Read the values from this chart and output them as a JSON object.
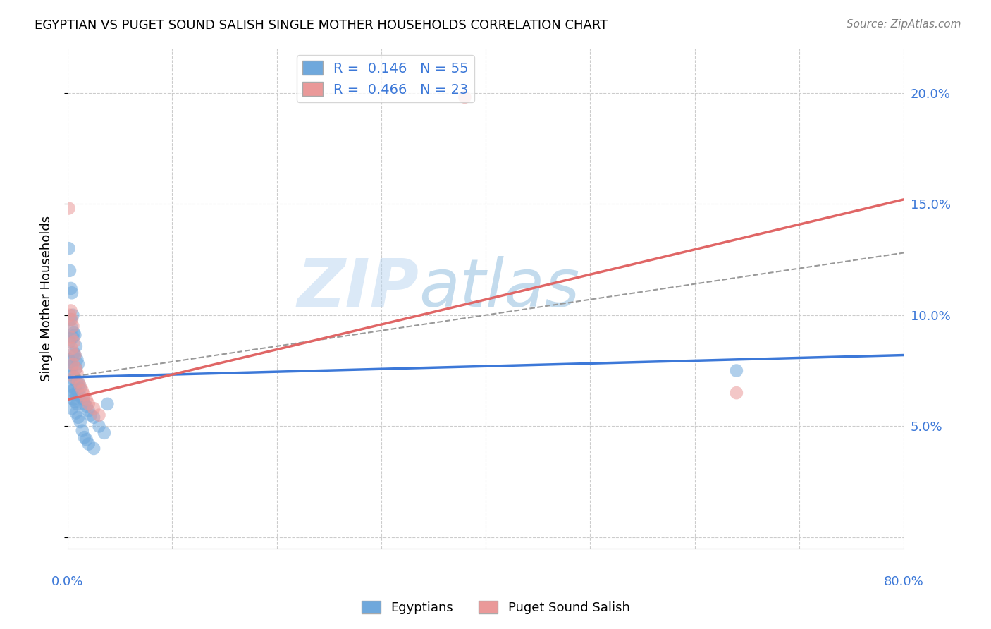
{
  "title": "EGYPTIAN VS PUGET SOUND SALISH SINGLE MOTHER HOUSEHOLDS CORRELATION CHART",
  "source": "Source: ZipAtlas.com",
  "ylabel": "Single Mother Households",
  "xlim": [
    0.0,
    0.8
  ],
  "ylim": [
    -0.005,
    0.22
  ],
  "xticks": [
    0.0,
    0.1,
    0.2,
    0.3,
    0.4,
    0.5,
    0.6,
    0.7,
    0.8
  ],
  "xticklabels": [
    "0.0%",
    "",
    "",
    "",
    "",
    "",
    "",
    "",
    "80.0%"
  ],
  "yticks": [
    0.0,
    0.05,
    0.1,
    0.15,
    0.2
  ],
  "yticklabels_right": [
    "",
    "5.0%",
    "10.0%",
    "15.0%",
    "20.0%"
  ],
  "blue_R": "0.146",
  "blue_N": "55",
  "pink_R": "0.466",
  "pink_N": "23",
  "blue_color": "#6fa8dc",
  "pink_color": "#ea9999",
  "blue_line_color": "#3c78d8",
  "pink_line_color": "#e06666",
  "dash_line_color": "#999999",
  "blue_scatter": [
    [
      0.001,
      0.13
    ],
    [
      0.002,
      0.12
    ],
    [
      0.003,
      0.112
    ],
    [
      0.004,
      0.11
    ],
    [
      0.005,
      0.1
    ],
    [
      0.003,
      0.098
    ],
    [
      0.004,
      0.094
    ],
    [
      0.006,
      0.092
    ],
    [
      0.005,
      0.09
    ],
    [
      0.007,
      0.091
    ],
    [
      0.002,
      0.088
    ],
    [
      0.008,
      0.086
    ],
    [
      0.006,
      0.083
    ],
    [
      0.007,
      0.082
    ],
    [
      0.001,
      0.08
    ],
    [
      0.009,
      0.08
    ],
    [
      0.003,
      0.079
    ],
    [
      0.01,
      0.078
    ],
    [
      0.004,
      0.077
    ],
    [
      0.008,
      0.076
    ],
    [
      0.002,
      0.074
    ],
    [
      0.005,
      0.073
    ],
    [
      0.006,
      0.071
    ],
    [
      0.009,
      0.07
    ],
    [
      0.011,
      0.069
    ],
    [
      0.003,
      0.068
    ],
    [
      0.007,
      0.067
    ],
    [
      0.012,
      0.067
    ],
    [
      0.004,
      0.066
    ],
    [
      0.008,
      0.065
    ],
    [
      0.01,
      0.065
    ],
    [
      0.005,
      0.064
    ],
    [
      0.013,
      0.063
    ],
    [
      0.006,
      0.062
    ],
    [
      0.015,
      0.062
    ],
    [
      0.007,
      0.061
    ],
    [
      0.009,
      0.06
    ],
    [
      0.016,
      0.06
    ],
    [
      0.018,
      0.059
    ],
    [
      0.004,
      0.058
    ],
    [
      0.02,
      0.057
    ],
    [
      0.008,
      0.056
    ],
    [
      0.022,
      0.055
    ],
    [
      0.01,
      0.054
    ],
    [
      0.025,
      0.054
    ],
    [
      0.012,
      0.052
    ],
    [
      0.03,
      0.05
    ],
    [
      0.014,
      0.048
    ],
    [
      0.035,
      0.047
    ],
    [
      0.016,
      0.045
    ],
    [
      0.018,
      0.044
    ],
    [
      0.02,
      0.042
    ],
    [
      0.025,
      0.04
    ],
    [
      0.64,
      0.075
    ],
    [
      0.038,
      0.06
    ]
  ],
  "pink_scatter": [
    [
      0.001,
      0.148
    ],
    [
      0.002,
      0.1
    ],
    [
      0.003,
      0.102
    ],
    [
      0.004,
      0.098
    ],
    [
      0.005,
      0.095
    ],
    [
      0.003,
      0.09
    ],
    [
      0.006,
      0.088
    ],
    [
      0.004,
      0.085
    ],
    [
      0.007,
      0.082
    ],
    [
      0.005,
      0.078
    ],
    [
      0.008,
      0.076
    ],
    [
      0.009,
      0.074
    ],
    [
      0.006,
      0.072
    ],
    [
      0.01,
      0.07
    ],
    [
      0.012,
      0.068
    ],
    [
      0.014,
      0.066
    ],
    [
      0.016,
      0.064
    ],
    [
      0.018,
      0.062
    ],
    [
      0.02,
      0.06
    ],
    [
      0.025,
      0.058
    ],
    [
      0.03,
      0.055
    ],
    [
      0.38,
      0.198
    ],
    [
      0.64,
      0.065
    ]
  ],
  "blue_trendline": [
    [
      0.0,
      0.072
    ],
    [
      0.8,
      0.082
    ]
  ],
  "pink_trendline": [
    [
      0.0,
      0.062
    ],
    [
      0.8,
      0.152
    ]
  ],
  "dash_trendline": [
    [
      0.0,
      0.072
    ],
    [
      0.8,
      0.128
    ]
  ],
  "background_color": "#ffffff",
  "grid_color": "#cccccc"
}
